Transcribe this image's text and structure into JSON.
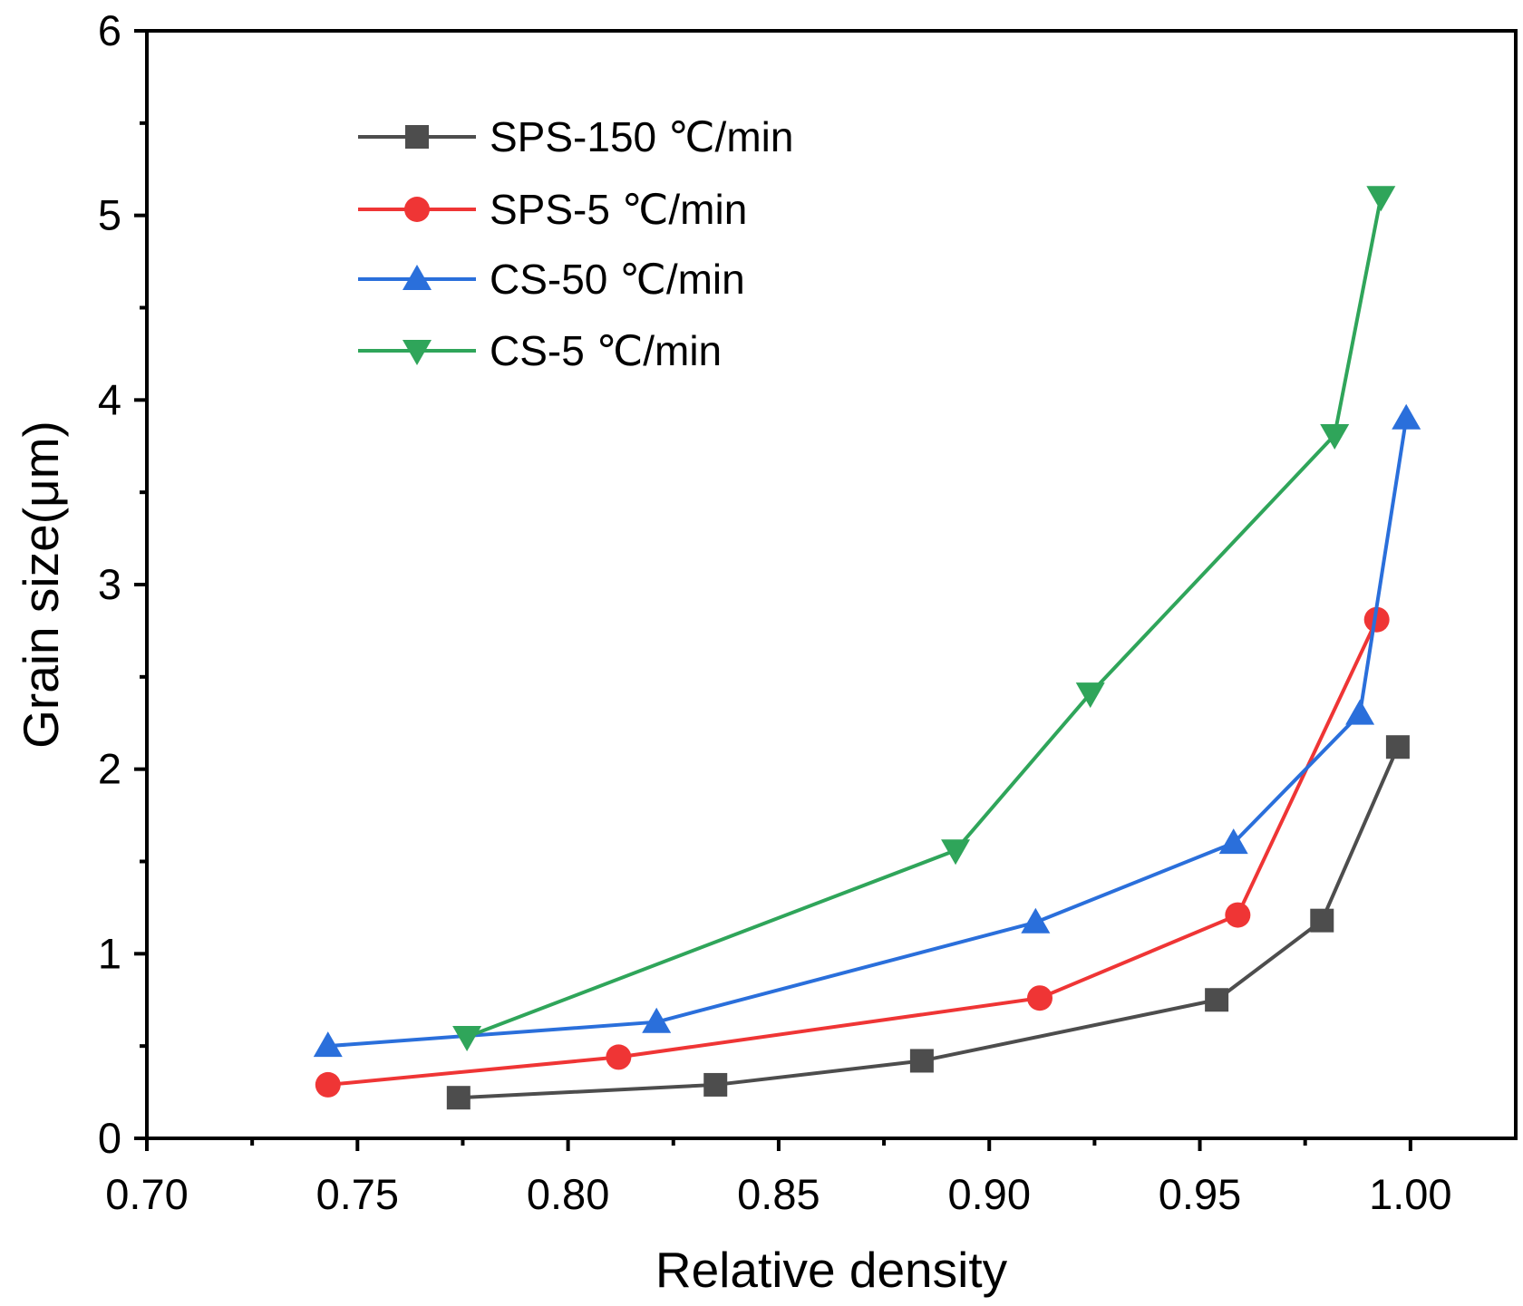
{
  "chart_data": {
    "type": "line",
    "title": "",
    "xlabel": "Relative density",
    "ylabel": "Grain size(μm)",
    "xlim": [
      0.7,
      1.025
    ],
    "ylim": [
      0,
      6
    ],
    "x_ticks": [
      0.7,
      0.75,
      0.8,
      0.85,
      0.9,
      0.95,
      1.0
    ],
    "x_tick_labels": [
      "0.70",
      "0.75",
      "0.80",
      "0.85",
      "0.90",
      "0.95",
      "1.00"
    ],
    "y_ticks": [
      0,
      1,
      2,
      3,
      4,
      5,
      6
    ],
    "y_tick_labels": [
      "0",
      "1",
      "2",
      "3",
      "4",
      "5",
      "6"
    ],
    "grid": false,
    "legend_position": "top-left",
    "series": [
      {
        "name": "SPS-150 ℃/min",
        "color": "#4d4d4d",
        "marker": "square",
        "points": [
          [
            0.774,
            0.22
          ],
          [
            0.835,
            0.29
          ],
          [
            0.884,
            0.42
          ],
          [
            0.954,
            0.75
          ],
          [
            0.979,
            1.18
          ],
          [
            0.997,
            2.12
          ]
        ]
      },
      {
        "name": "SPS-5 ℃/min",
        "color": "#ef3535",
        "marker": "circle",
        "points": [
          [
            0.743,
            0.29
          ],
          [
            0.812,
            0.44
          ],
          [
            0.912,
            0.76
          ],
          [
            0.959,
            1.21
          ],
          [
            0.992,
            2.81
          ]
        ]
      },
      {
        "name": "CS-50 ℃/min",
        "color": "#2a6fdb",
        "marker": "triangle-up",
        "points": [
          [
            0.743,
            0.5
          ],
          [
            0.821,
            0.63
          ],
          [
            0.911,
            1.17
          ],
          [
            0.958,
            1.6
          ],
          [
            0.988,
            2.3
          ],
          [
            0.999,
            3.9
          ]
        ]
      },
      {
        "name": "CS-5 ℃/min",
        "color": "#2fa55a",
        "marker": "triangle-down",
        "points": [
          [
            0.776,
            0.55
          ],
          [
            0.892,
            1.56
          ],
          [
            0.924,
            2.41
          ],
          [
            0.982,
            3.81
          ],
          [
            0.993,
            5.1
          ]
        ]
      }
    ]
  }
}
